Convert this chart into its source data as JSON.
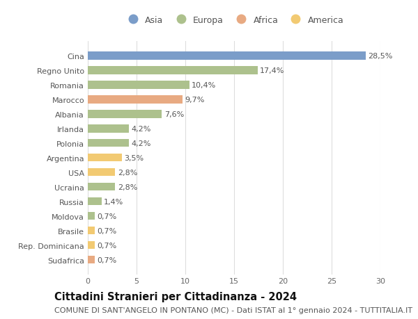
{
  "countries": [
    "Cina",
    "Regno Unito",
    "Romania",
    "Marocco",
    "Albania",
    "Irlanda",
    "Polonia",
    "Argentina",
    "USA",
    "Ucraina",
    "Russia",
    "Moldova",
    "Brasile",
    "Rep. Dominicana",
    "Sudafrica"
  ],
  "values": [
    28.5,
    17.4,
    10.4,
    9.7,
    7.6,
    4.2,
    4.2,
    3.5,
    2.8,
    2.8,
    1.4,
    0.7,
    0.7,
    0.7,
    0.7
  ],
  "labels": [
    "28,5%",
    "17,4%",
    "10,4%",
    "9,7%",
    "7,6%",
    "4,2%",
    "4,2%",
    "3,5%",
    "2,8%",
    "2,8%",
    "1,4%",
    "0,7%",
    "0,7%",
    "0,7%",
    "0,7%"
  ],
  "continents": [
    "Asia",
    "Europa",
    "Europa",
    "Africa",
    "Europa",
    "Europa",
    "Europa",
    "America",
    "America",
    "Europa",
    "Europa",
    "Europa",
    "America",
    "America",
    "Africa"
  ],
  "colors": {
    "Asia": "#7b9dc9",
    "Europa": "#adc18d",
    "Africa": "#e8aa82",
    "America": "#f2ca72"
  },
  "legend_order": [
    "Asia",
    "Europa",
    "Africa",
    "America"
  ],
  "title": "Cittadini Stranieri per Cittadinanza - 2024",
  "subtitle": "COMUNE DI SANT'ANGELO IN PONTANO (MC) - Dati ISTAT al 1° gennaio 2024 - TUTTITALIA.IT",
  "xlim": [
    0,
    30
  ],
  "xticks": [
    0,
    5,
    10,
    15,
    20,
    25,
    30
  ],
  "background_color": "#ffffff",
  "grid_color": "#dddddd",
  "bar_height": 0.55,
  "title_fontsize": 10.5,
  "subtitle_fontsize": 8,
  "label_fontsize": 8,
  "tick_fontsize": 8,
  "legend_fontsize": 9
}
